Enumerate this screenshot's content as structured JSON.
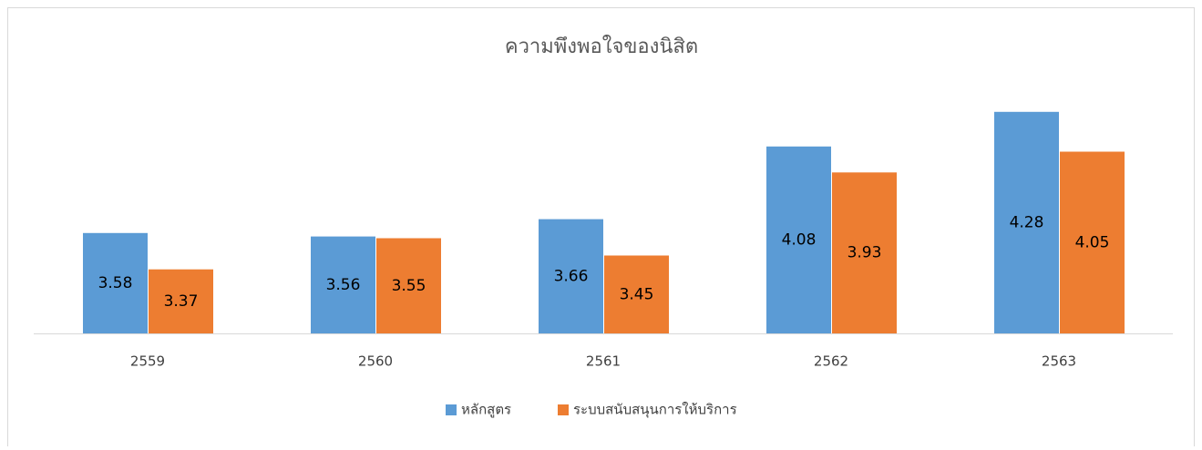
{
  "chart_data": {
    "type": "bar",
    "title": "ความพึงพอใจของนิสิต",
    "categories": [
      "2559",
      "2560",
      "2561",
      "2562",
      "2563"
    ],
    "series": [
      {
        "name": "หลักสูตร",
        "color": "#5b9bd5",
        "values": [
          3.58,
          3.56,
          3.66,
          4.08,
          4.28
        ]
      },
      {
        "name": "ระบบสนับสนุนการให้บริการ",
        "color": "#ed7d31",
        "values": [
          3.37,
          3.55,
          3.45,
          3.93,
          4.05
        ]
      }
    ],
    "ylim": [
      3,
      4.4
    ],
    "legend": "bottom"
  }
}
